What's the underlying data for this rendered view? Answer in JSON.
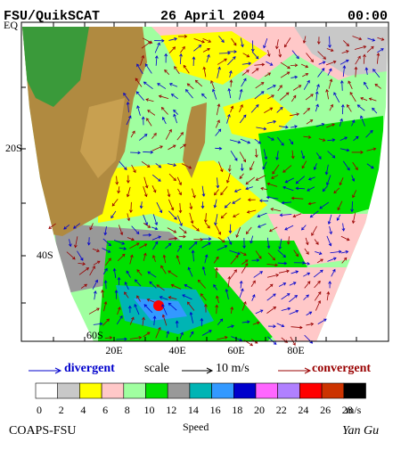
{
  "header": {
    "left": "FSU/QuikSCAT",
    "center": "26 April 2004",
    "right": "00:00"
  },
  "lat_labels": [
    "EQ",
    "20S",
    "40S",
    "60S"
  ],
  "lon_labels": [
    "20E",
    "40E",
    "60E",
    "80E"
  ],
  "legend": {
    "divergent": "divergent",
    "scale": "scale",
    "scale_value": "10 m/s",
    "convergent": "convergent"
  },
  "colorbar": {
    "labels": [
      "0",
      "2",
      "4",
      "6",
      "8",
      "10",
      "12",
      "14",
      "16",
      "18",
      "20",
      "22",
      "24",
      "26",
      "28"
    ],
    "unit": "m/s",
    "colors": [
      "#ffffff",
      "#c8c8c8",
      "#ffff00",
      "#ffc8c8",
      "#a0ffa0",
      "#00e000",
      "#999999",
      "#00b4b4",
      "#3399ff",
      "#0000cc",
      "#ff66ff",
      "#b080ff",
      "#ff0000",
      "#cc3300",
      "#000000"
    ]
  },
  "footer": {
    "left": "COAPS-FSU",
    "center": "Speed",
    "right": "Yan Gu"
  }
}
